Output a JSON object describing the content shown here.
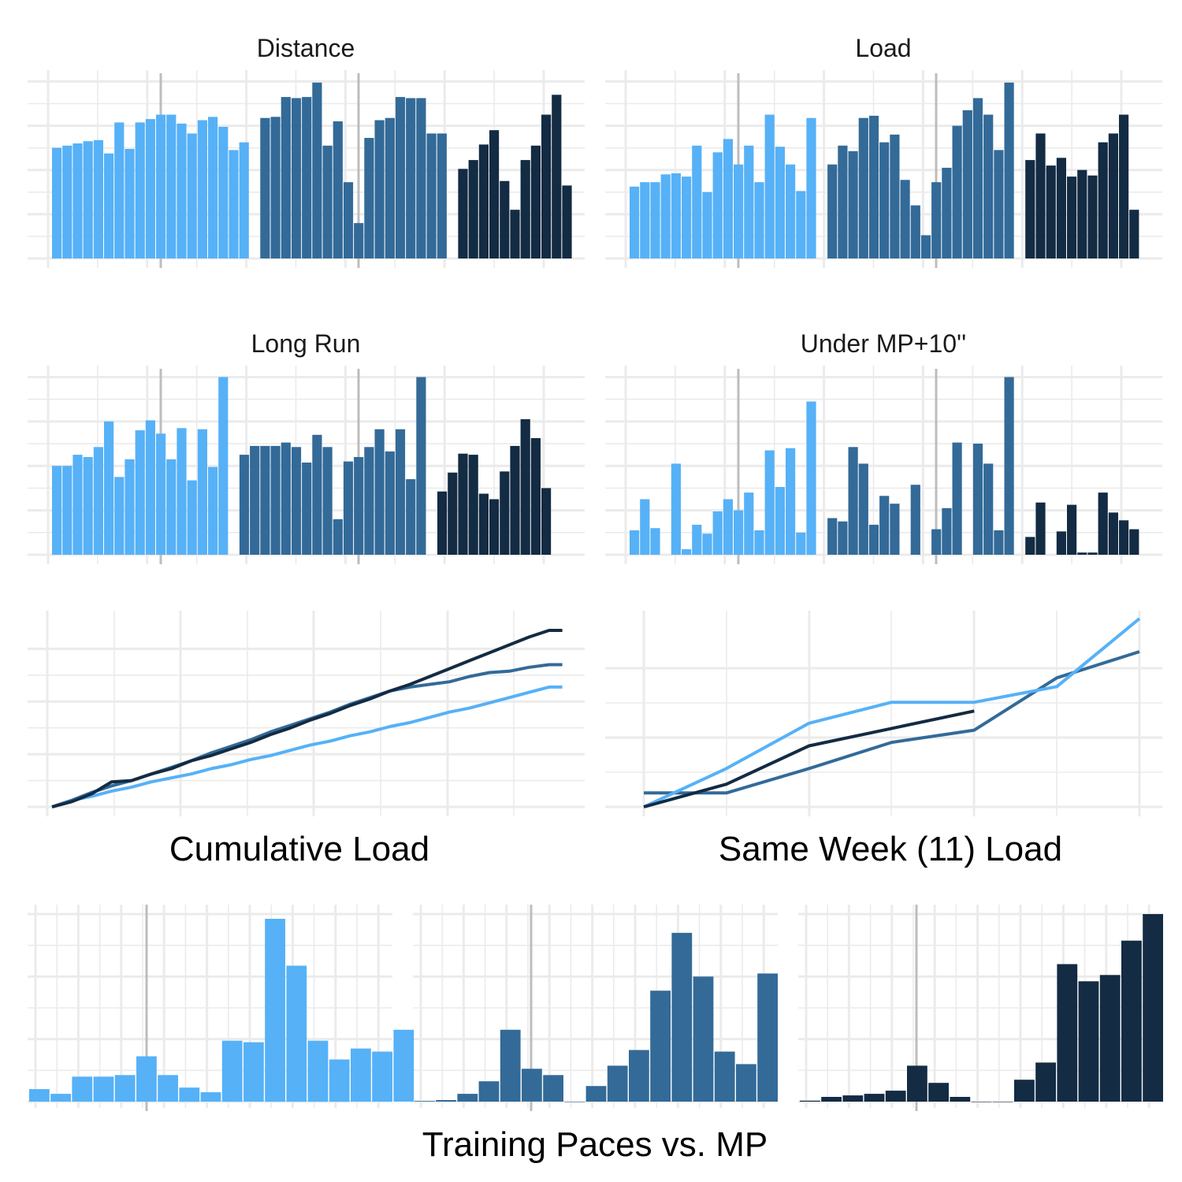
{
  "colors": {
    "cycle_light": "#56b1f7",
    "cycle_mid": "#336a98",
    "cycle_dark": "#132b43",
    "grid": "#ebebeb",
    "reference_line": "#bdbdbd"
  },
  "chart_data": [
    {
      "type": "bar",
      "title": "Distance",
      "series": [
        {
          "color": "#56b1f7",
          "values": [
            5,
            5.1,
            5.2,
            5.3,
            5.35,
            4.75,
            6.15,
            4.95,
            6.15,
            6.3,
            6.5,
            6.5,
            6.1,
            5.65,
            6.25,
            6.4,
            5.95,
            4.9,
            5.25
          ]
        },
        {
          "color": "#336a98",
          "values": [
            6.35,
            6.4,
            7.3,
            7.25,
            7.3,
            7.95,
            5.1,
            6.2,
            3.45,
            1.6,
            5.45,
            6.25,
            6.35,
            7.3,
            7.25,
            7.25,
            5.65,
            5.65
          ]
        },
        {
          "color": "#132b43",
          "values": [
            4.05,
            4.45,
            5.15,
            5.8,
            3.5,
            2.2,
            4.45,
            5.1,
            6.5,
            7.4,
            3.3
          ]
        }
      ],
      "ylim": [
        0,
        8.3
      ]
    },
    {
      "type": "bar",
      "title": "Load",
      "series": [
        {
          "color": "#56b1f7",
          "values": [
            3.25,
            3.45,
            3.45,
            3.8,
            3.85,
            3.7,
            5.1,
            3.0,
            4.8,
            5.4,
            4.25,
            5.1,
            3.45,
            6.5,
            5.05,
            4.25,
            3.05,
            6.35
          ]
        },
        {
          "color": "#336a98",
          "values": [
            4.25,
            5.1,
            4.85,
            6.35,
            6.45,
            5.25,
            5.6,
            3.55,
            2.4,
            1.05,
            3.45,
            4.1,
            6.0,
            6.7,
            7.25,
            6.5,
            4.9,
            7.95
          ]
        },
        {
          "color": "#132b43",
          "values": [
            4.45,
            5.65,
            4.2,
            4.55,
            3.7,
            4.0,
            3.75,
            5.25,
            5.65,
            6.5,
            2.2
          ]
        }
      ],
      "ylim": [
        0,
        8.3
      ]
    },
    {
      "type": "bar",
      "title": "Long Run",
      "series": [
        {
          "color": "#56b1f7",
          "values": [
            4.0,
            4.0,
            4.5,
            4.4,
            4.85,
            6.0,
            3.5,
            4.3,
            5.6,
            6.05,
            5.45,
            4.3,
            5.7,
            3.35,
            5.65,
            3.95,
            8.0
          ]
        },
        {
          "color": "#336a98",
          "values": [
            4.5,
            4.9,
            4.9,
            4.9,
            5.05,
            4.85,
            4.15,
            5.4,
            4.85,
            1.6,
            4.2,
            4.4,
            4.85,
            5.65,
            4.65,
            5.65,
            3.4,
            8.0
          ]
        },
        {
          "color": "#132b43",
          "values": [
            2.85,
            3.7,
            4.55,
            4.5,
            2.75,
            2.5,
            3.75,
            4.9,
            6.1,
            5.25,
            3.0
          ]
        }
      ],
      "ylim": [
        0,
        8.3
      ]
    },
    {
      "type": "bar",
      "title": "Under MP+10''",
      "series": [
        {
          "color": "#56b1f7",
          "values": [
            1.1,
            2.5,
            1.2,
            0,
            4.1,
            0.25,
            1.35,
            0.95,
            1.95,
            2.5,
            2.0,
            2.8,
            1.1,
            4.7,
            3.05,
            4.8,
            1.0,
            6.9
          ]
        },
        {
          "color": "#336a98",
          "values": [
            1.65,
            1.5,
            4.85,
            4.1,
            1.35,
            2.65,
            2.3,
            0,
            3.15,
            0,
            1.15,
            2.1,
            5.05,
            0,
            5.0,
            4.1,
            1.1,
            8.0
          ]
        },
        {
          "color": "#132b43",
          "values": [
            0.8,
            2.35,
            0,
            1.05,
            2.25,
            0.1,
            0.1,
            2.8,
            1.9,
            1.55,
            1.15
          ]
        }
      ],
      "ylim": [
        0,
        8.3
      ]
    },
    {
      "type": "line",
      "title": "Cumulative Load",
      "x_range": [
        0,
        78
      ],
      "ylim": [
        0,
        6.7
      ],
      "series": [
        {
          "color": "#56b1f7",
          "points": [
            [
              0,
              0
            ],
            [
              3,
              0.25
            ],
            [
              6,
              0.4
            ],
            [
              9,
              0.6
            ],
            [
              12,
              0.75
            ],
            [
              15,
              0.95
            ],
            [
              18,
              1.1
            ],
            [
              21,
              1.25
            ],
            [
              24,
              1.45
            ],
            [
              27,
              1.6
            ],
            [
              30,
              1.8
            ],
            [
              33,
              1.95
            ],
            [
              36,
              2.15
            ],
            [
              39,
              2.35
            ],
            [
              42,
              2.5
            ],
            [
              45,
              2.7
            ],
            [
              48,
              2.85
            ],
            [
              51,
              3.05
            ],
            [
              54,
              3.2
            ],
            [
              57,
              3.4
            ],
            [
              60,
              3.6
            ],
            [
              63,
              3.75
            ],
            [
              66,
              3.95
            ],
            [
              69,
              4.15
            ],
            [
              72,
              4.35
            ],
            [
              75,
              4.55
            ],
            [
              77,
              4.55
            ]
          ]
        },
        {
          "color": "#336a98",
          "points": [
            [
              0,
              0
            ],
            [
              3,
              0.25
            ],
            [
              6,
              0.55
            ],
            [
              9,
              0.8
            ],
            [
              12,
              1.0
            ],
            [
              15,
              1.25
            ],
            [
              18,
              1.5
            ],
            [
              21,
              1.75
            ],
            [
              24,
              2.05
            ],
            [
              27,
              2.3
            ],
            [
              30,
              2.55
            ],
            [
              33,
              2.85
            ],
            [
              36,
              3.1
            ],
            [
              39,
              3.35
            ],
            [
              42,
              3.6
            ],
            [
              45,
              3.9
            ],
            [
              48,
              4.15
            ],
            [
              51,
              4.4
            ],
            [
              54,
              4.55
            ],
            [
              57,
              4.65
            ],
            [
              60,
              4.75
            ],
            [
              63,
              4.95
            ],
            [
              66,
              5.1
            ],
            [
              69,
              5.15
            ],
            [
              72,
              5.3
            ],
            [
              75,
              5.4
            ],
            [
              77,
              5.4
            ]
          ]
        },
        {
          "color": "#132b43",
          "points": [
            [
              0,
              0
            ],
            [
              3,
              0.2
            ],
            [
              6,
              0.5
            ],
            [
              9,
              0.95
            ],
            [
              12,
              1.0
            ],
            [
              15,
              1.25
            ],
            [
              18,
              1.45
            ],
            [
              21,
              1.75
            ],
            [
              24,
              1.95
            ],
            [
              27,
              2.2
            ],
            [
              30,
              2.45
            ],
            [
              33,
              2.75
            ],
            [
              36,
              3.0
            ],
            [
              39,
              3.3
            ],
            [
              42,
              3.55
            ],
            [
              45,
              3.85
            ],
            [
              48,
              4.1
            ],
            [
              51,
              4.4
            ],
            [
              54,
              4.65
            ],
            [
              57,
              4.95
            ],
            [
              60,
              5.25
            ],
            [
              63,
              5.55
            ],
            [
              66,
              5.85
            ],
            [
              69,
              6.15
            ],
            [
              72,
              6.45
            ],
            [
              75,
              6.7
            ],
            [
              77,
              6.7
            ]
          ]
        }
      ]
    },
    {
      "type": "line",
      "title": "Same Week (11) Load",
      "x_range": [
        0,
        6
      ],
      "ylim": [
        0,
        5.4
      ],
      "series": [
        {
          "color": "#336a98",
          "points": [
            [
              0,
              0.4
            ],
            [
              1,
              0.4
            ],
            [
              2,
              1.1
            ],
            [
              3,
              1.85
            ],
            [
              4,
              2.2
            ],
            [
              5,
              3.7
            ],
            [
              6,
              4.45
            ]
          ]
        },
        {
          "color": "#56b1f7",
          "points": [
            [
              0,
              0
            ],
            [
              1,
              1.1
            ],
            [
              2,
              2.4
            ],
            [
              3,
              3.0
            ],
            [
              4,
              3.0
            ],
            [
              5,
              3.45
            ],
            [
              6,
              5.4
            ]
          ]
        },
        {
          "color": "#132b43",
          "points": [
            [
              0,
              0
            ],
            [
              1,
              0.65
            ],
            [
              2,
              1.75
            ],
            [
              3,
              2.25
            ],
            [
              4,
              2.75
            ]
          ]
        }
      ]
    },
    {
      "type": "bar",
      "title": "Training Paces vs. MP",
      "ylim": [
        0,
        60
      ],
      "series": [
        {
          "color": "#56b1f7",
          "values": [
            4,
            2.5,
            8,
            8,
            8.5,
            14.5,
            8.5,
            4.5,
            3,
            19.5,
            19,
            58.5,
            43.5,
            19.5,
            13.5,
            17,
            16,
            23
          ]
        },
        {
          "color": "#336a98",
          "values": [
            0.2,
            0.5,
            2.5,
            6.5,
            23,
            10.5,
            8.5,
            0,
            5,
            11.5,
            16.5,
            35.5,
            54,
            40,
            16,
            12,
            41
          ]
        },
        {
          "color": "#132b43",
          "values": [
            0.3,
            1.5,
            2,
            2.5,
            3.5,
            11.5,
            6,
            1.5,
            0,
            0,
            7,
            12.5,
            44,
            38.5,
            40.5,
            51.5,
            60
          ]
        }
      ]
    }
  ]
}
